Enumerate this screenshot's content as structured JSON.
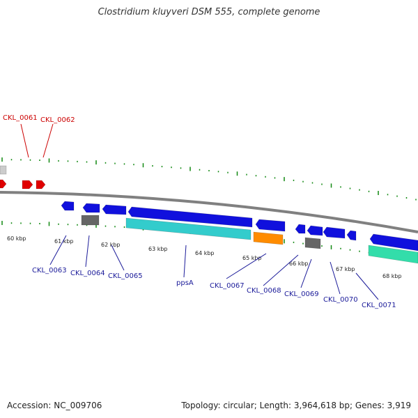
{
  "title": "Clostridium kluyveri DSM 555, complete genome",
  "footer": {
    "accession": "Accession: NC_009706",
    "topology": "Topology: circular; Length: 3,964,618 bp; Genes: 3,919"
  },
  "colors": {
    "backbone": "#808080",
    "forward_cds": "#e00000",
    "reverse_cds": "#1010dd",
    "cyan_feature": "#33cccc",
    "orange_feature": "#ff8c00",
    "gray_feature": "#666666",
    "green_feature": "#33ddaa",
    "light_gray": "#cccccc",
    "tick": "#118811",
    "label_red": "#cc0000",
    "label_blue": "#1a1a99"
  },
  "kbp_labels": [
    "60 kbp",
    "61 kbp",
    "62 kbp",
    "63 kbp",
    "64 kbp",
    "65 kbp",
    "66 kbp",
    "67 kbp",
    "68 kbp"
  ],
  "gene_labels_top": [
    "CKL_0061",
    "CKL_0062"
  ],
  "gene_labels_bottom": [
    "CKL_0063",
    "CKL_0064",
    "CKL_0065",
    "ppsA",
    "CKL_0067",
    "CKL_0068",
    "CKL_0069",
    "CKL_0070",
    "CKL_0071"
  ]
}
